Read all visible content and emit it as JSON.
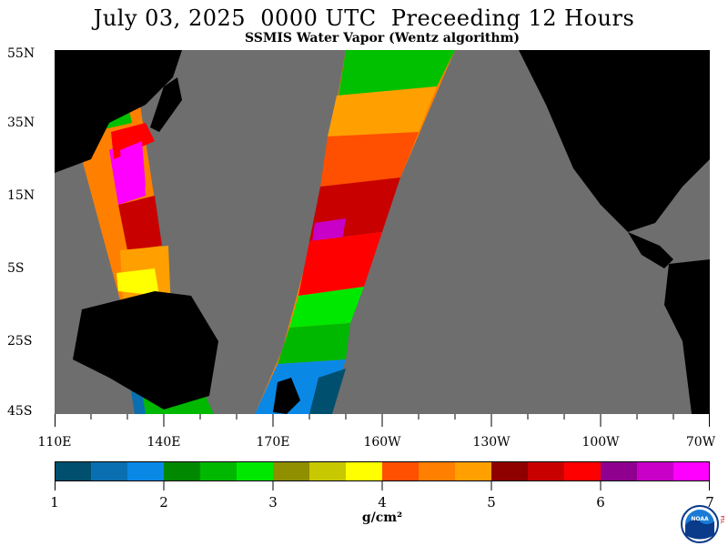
{
  "title": "July 03, 2025  0000 UTC  Preceeding 12 Hours",
  "subtitle": "SSMIS Water Vapor (Wentz algorithm)",
  "lat_labels": [
    "55N",
    "35N",
    "15N",
    "5S",
    "25S",
    "45S"
  ],
  "lon_labels": [
    "110E",
    "140E",
    "170E",
    "160W",
    "130W",
    "100W",
    "70W"
  ],
  "colorbar": {
    "ticks": [
      "1",
      "2",
      "3",
      "4",
      "5",
      "6",
      "7"
    ],
    "units": "g/cm²",
    "colors": [
      "#004f6e",
      "#0a6fb0",
      "#0a88e6",
      "#008800",
      "#00b800",
      "#00e800",
      "#8f8f00",
      "#c8c800",
      "#ffff00",
      "#ff4f00",
      "#ff7f00",
      "#ffa000",
      "#8f0000",
      "#c80000",
      "#ff0000",
      "#8f008f",
      "#c800c8",
      "#ff00ff"
    ]
  },
  "map": {
    "land_color": "#000000",
    "no_data_color": "#6e6e6e"
  },
  "logo": {
    "text": "NOAA",
    "side_text": "PSL"
  }
}
